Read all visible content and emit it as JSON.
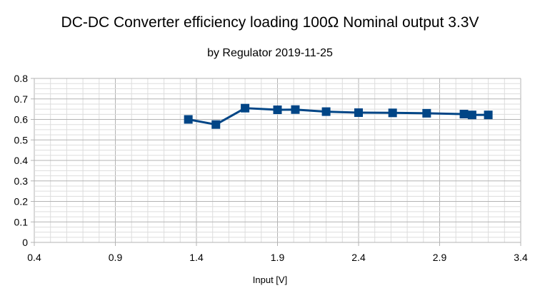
{
  "chart_data": {
    "type": "line",
    "title": "DC-DC Converter efficiency loading 100Ω Nominal output 3.3V",
    "subtitle": "by Regulator 2019-11-25",
    "xlabel": "Input [V]",
    "ylabel": "",
    "xlim": [
      0.4,
      3.4
    ],
    "ylim": [
      0,
      0.8
    ],
    "xticks": [
      "0.4",
      "0.9",
      "1.4",
      "1.9",
      "2.4",
      "2.9",
      "3.4"
    ],
    "yticks": [
      "0",
      "0.1",
      "0.2",
      "0.3",
      "0.4",
      "0.5",
      "0.6",
      "0.7",
      "0.8"
    ],
    "grid": true,
    "legend": false,
    "series": [
      {
        "color": "#004586",
        "marker": "square",
        "points": [
          {
            "x": 1.35,
            "y": 0.6
          },
          {
            "x": 1.52,
            "y": 0.575
          },
          {
            "x": 1.7,
            "y": 0.655
          },
          {
            "x": 1.9,
            "y": 0.647
          },
          {
            "x": 2.01,
            "y": 0.648
          },
          {
            "x": 2.2,
            "y": 0.638
          },
          {
            "x": 2.4,
            "y": 0.633
          },
          {
            "x": 2.61,
            "y": 0.632
          },
          {
            "x": 2.82,
            "y": 0.63
          },
          {
            "x": 3.05,
            "y": 0.626
          },
          {
            "x": 3.1,
            "y": 0.622
          },
          {
            "x": 3.2,
            "y": 0.622
          }
        ]
      }
    ]
  }
}
